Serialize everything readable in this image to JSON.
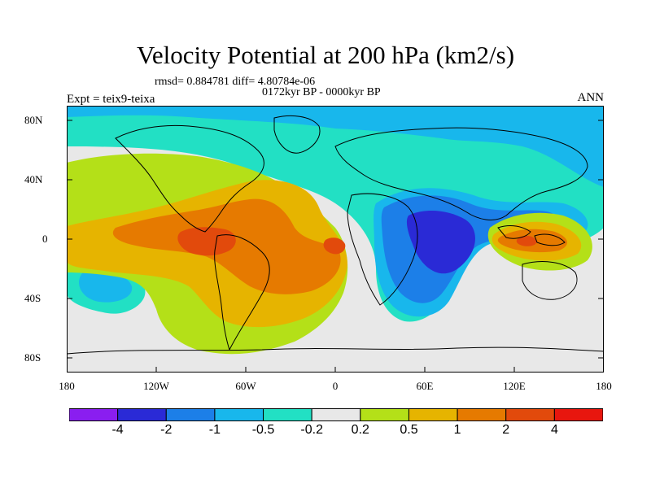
{
  "title": "Velocity Potential at 200 hPa (km2/s)",
  "stats_line": "rmsd= 0.884781 diff= 4.80784e-06",
  "period_line": "0172kyr BP - 0000kyr BP",
  "left_label": "Expt = teix9-teixa",
  "right_label": "ANN",
  "y_ticks": [
    "80N",
    "40N",
    "0",
    "40S",
    "80S"
  ],
  "x_ticks": [
    "180",
    "120W",
    "60W",
    "0",
    "60E",
    "120E",
    "180"
  ],
  "colorbar": {
    "labels": [
      "-4",
      "-2",
      "-1",
      "-0.5",
      "-0.2",
      "0.2",
      "0.5",
      "1",
      "2",
      "4"
    ],
    "colors": [
      "#8a1ef0",
      "#2a2ad6",
      "#1c7fe8",
      "#18b7ec",
      "#22e0c4",
      "#e8e8e8",
      "#b4e018",
      "#e6b400",
      "#e67a00",
      "#e24a0c",
      "#e8160e"
    ]
  },
  "continent_outline_color": "#000000"
}
